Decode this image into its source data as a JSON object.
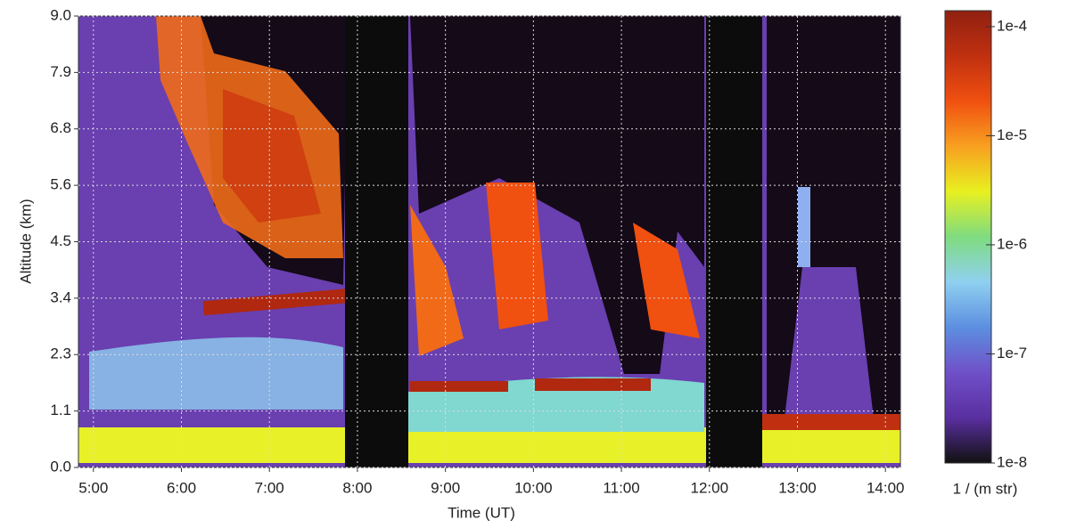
{
  "chart_data": {
    "type": "heatmap",
    "x_label": "Time (UT)",
    "y_label": "Altitude (km)",
    "xlim": [
      4.83,
      14.17
    ],
    "xticks": [
      {
        "value": 5,
        "label": "5:00"
      },
      {
        "value": 6,
        "label": "6:00"
      },
      {
        "value": 7,
        "label": "7:00"
      },
      {
        "value": 8,
        "label": "8:00"
      },
      {
        "value": 9,
        "label": "9:00"
      },
      {
        "value": 10,
        "label": "10:00"
      },
      {
        "value": 11,
        "label": "11:00"
      },
      {
        "value": 12,
        "label": "12:00"
      },
      {
        "value": 13,
        "label": "13:00"
      },
      {
        "value": 14,
        "label": "14:00"
      }
    ],
    "ylim": [
      0,
      9
    ],
    "yticks": [
      {
        "value": 0,
        "label": "0.0"
      },
      {
        "value": 1.125,
        "label": "1.1"
      },
      {
        "value": 2.25,
        "label": "2.3"
      },
      {
        "value": 3.375,
        "label": "3.4"
      },
      {
        "value": 4.5,
        "label": "4.5"
      },
      {
        "value": 5.625,
        "label": "5.6"
      },
      {
        "value": 6.75,
        "label": "6.8"
      },
      {
        "value": 7.875,
        "label": "7.9"
      },
      {
        "value": 9,
        "label": "9.0"
      }
    ],
    "grid": true,
    "colorbar": {
      "label": "1 / (m str)",
      "log_scale": true,
      "lim": [
        1e-08,
        0.00014
      ],
      "ticks": [
        {
          "value": 1e-08,
          "label": "1e-8"
        },
        {
          "value": 1e-07,
          "label": "1e-7"
        },
        {
          "value": 1e-06,
          "label": "1e-6"
        },
        {
          "value": 1e-05,
          "label": "1e-5"
        },
        {
          "value": 0.0001,
          "label": "1e-4"
        }
      ],
      "colors": [
        "#111111",
        "#5a2fa0",
        "#6f50c8",
        "#5c8fe0",
        "#8fd0f0",
        "#7fdc80",
        "#e8f020",
        "#f8a020",
        "#f05010",
        "#c03010",
        "#902010"
      ]
    }
  }
}
